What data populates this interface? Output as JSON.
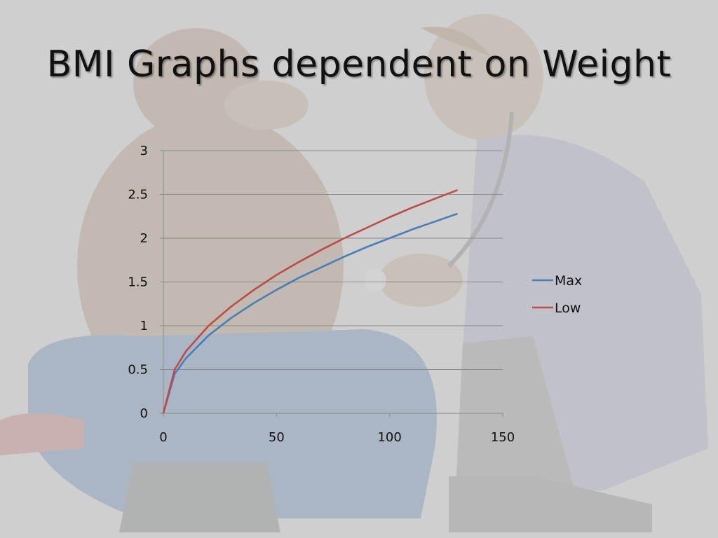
{
  "slide": {
    "title": "BMI Graphs dependent on Weight"
  },
  "chart_data": {
    "type": "line",
    "title": "",
    "xlabel": "",
    "ylabel": "",
    "xlim": [
      0,
      150
    ],
    "ylim": [
      0,
      3
    ],
    "x_ticks": [
      0,
      50,
      100,
      150
    ],
    "y_ticks": [
      0,
      0.5,
      1,
      1.5,
      2,
      2.5,
      3
    ],
    "y_tick_labels": [
      "0",
      "0.5",
      "1",
      "1.5",
      "2",
      "2.5",
      "3"
    ],
    "x_tick_labels": [
      "0",
      "50",
      "100",
      "150"
    ],
    "grid": "horizontal",
    "legend": "right",
    "series": [
      {
        "name": "Max",
        "color": "#4a7ebb",
        "x": [
          0,
          5,
          10,
          20,
          30,
          40,
          50,
          60,
          70,
          80,
          90,
          100,
          110,
          120,
          130
        ],
        "y": [
          0,
          0.45,
          0.63,
          0.89,
          1.09,
          1.26,
          1.41,
          1.55,
          1.67,
          1.79,
          1.9,
          2.0,
          2.1,
          2.19,
          2.28
        ]
      },
      {
        "name": "Low",
        "color": "#be4b48",
        "x": [
          0,
          5,
          10,
          20,
          30,
          40,
          50,
          60,
          70,
          80,
          90,
          100,
          110,
          120,
          130
        ],
        "y": [
          0,
          0.5,
          0.71,
          1.0,
          1.22,
          1.41,
          1.58,
          1.73,
          1.87,
          2.0,
          2.12,
          2.24,
          2.35,
          2.45,
          2.55
        ]
      }
    ]
  },
  "colors": {
    "background": "#cfcfcf",
    "gridline": "#8a8a8a",
    "axis": "#8a8a8a"
  },
  "decoration": {
    "illustration": "faded cartoon of a doctor with stethoscope examining a patient"
  }
}
